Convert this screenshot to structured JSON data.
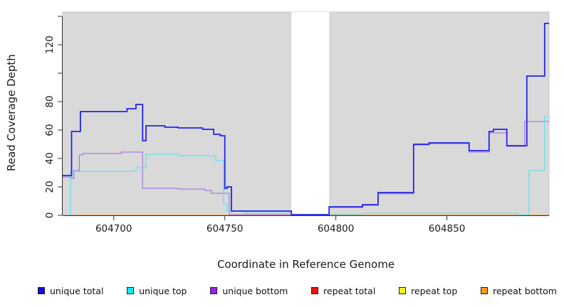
{
  "chart": {
    "y_axis_title": "Read Coverage Depth",
    "x_axis_title": "Coordinate in Reference Genome",
    "x_ticks": [
      {
        "pos": 604700,
        "label": "604700"
      },
      {
        "pos": 604750,
        "label": "604750"
      },
      {
        "pos": 604800,
        "label": "604800"
      },
      {
        "pos": 604850,
        "label": "604850"
      }
    ],
    "y_ticks": [
      {
        "pos": 0,
        "label": "0"
      },
      {
        "pos": 20,
        "label": "20"
      },
      {
        "pos": 40,
        "label": "40"
      },
      {
        "pos": 60,
        "label": "60"
      },
      {
        "pos": 80,
        "label": "80"
      },
      {
        "pos": 100,
        "label": ""
      },
      {
        "pos": 120,
        "label": "120"
      },
      {
        "pos": 140,
        "label": ""
      }
    ]
  },
  "legend": {
    "items": [
      {
        "label": "unique total",
        "color": "#0f0fe0"
      },
      {
        "label": "unique top",
        "color": "#0ff0f5"
      },
      {
        "label": "unique bottom",
        "color": "#9c1fe8"
      },
      {
        "label": "repeat total",
        "color": "#ee0f0f"
      },
      {
        "label": "repeat top",
        "color": "#fdf514"
      },
      {
        "label": "repeat bottom",
        "color": "#f79a1e"
      }
    ]
  },
  "chart_data": {
    "type": "line",
    "subtype": "step-coverage",
    "title": "",
    "xlabel": "Coordinate in Reference Genome",
    "ylabel": "Read Coverage Depth",
    "xlim": [
      604677,
      604896
    ],
    "ylim": [
      0,
      143
    ],
    "grid": false,
    "panel_background": "#d9d9d9",
    "gap_region": [
      604780,
      604797
    ],
    "legend_position": "bottom",
    "series": [
      {
        "name": "repeat top",
        "color": "#f5ef3d",
        "width": 1.2,
        "steps": [
          [
            604677,
            0
          ]
        ]
      },
      {
        "name": "repeat total",
        "color": "#d97b9a",
        "width": 1.2,
        "steps": [
          [
            604677,
            0
          ],
          [
            604753,
            0.35
          ],
          [
            604780,
            0
          ]
        ]
      },
      {
        "name": "repeat bottom",
        "color": "#ff9d2e",
        "width": 1.6,
        "steps": [
          [
            604677,
            0
          ]
        ]
      },
      {
        "name": "unique bottom",
        "color": "#a97ddd",
        "width": 1.3,
        "steps": [
          [
            604677,
            27
          ],
          [
            604681,
            26
          ],
          [
            604682,
            31.5
          ],
          [
            604684.5,
            42.5
          ],
          [
            604686,
            43.5
          ],
          [
            604703.5,
            44.5
          ],
          [
            604713,
            19
          ],
          [
            604729,
            18.5
          ],
          [
            604741,
            17.5
          ],
          [
            604744,
            15.5
          ],
          [
            604752,
            0.5
          ],
          [
            604780,
            0.3
          ],
          [
            604797,
            5.5
          ],
          [
            604812,
            7
          ],
          [
            604819,
            15.2
          ],
          [
            604835,
            49.5
          ],
          [
            604842,
            50.5
          ],
          [
            604860,
            44.5
          ],
          [
            604869,
            58
          ],
          [
            604877,
            48.5
          ],
          [
            604885,
            66
          ]
        ]
      },
      {
        "name": "unique top",
        "color": "#63e3ee",
        "width": 1.3,
        "steps": [
          [
            604677,
            0
          ],
          [
            604680.5,
            31
          ],
          [
            604710,
            33.5
          ],
          [
            604714.5,
            43
          ],
          [
            604729,
            41.8
          ],
          [
            604746,
            38.5
          ],
          [
            604749.5,
            8
          ],
          [
            604751,
            3.2
          ],
          [
            604759,
            1.5
          ],
          [
            604780,
            0.3
          ],
          [
            604797,
            0.8
          ],
          [
            604812,
            1.4
          ],
          [
            604882,
            0.5
          ],
          [
            604887,
            31.5
          ],
          [
            604894,
            69.5
          ]
        ]
      },
      {
        "name": "unique total",
        "color": "#2323e6",
        "width": 1.8,
        "steps": [
          [
            604677,
            28
          ],
          [
            604681,
            59
          ],
          [
            604685,
            73
          ],
          [
            604706,
            75
          ],
          [
            604710,
            78
          ],
          [
            604713,
            52.5
          ],
          [
            604714.5,
            63
          ],
          [
            604723,
            62
          ],
          [
            604729,
            61.5
          ],
          [
            604740,
            60.5
          ],
          [
            604745,
            57
          ],
          [
            604748,
            56
          ],
          [
            604750,
            19
          ],
          [
            604751,
            20
          ],
          [
            604753,
            3
          ],
          [
            604780,
            0.5
          ],
          [
            604797,
            6
          ],
          [
            604812,
            7.5
          ],
          [
            604819,
            16
          ],
          [
            604835,
            50
          ],
          [
            604842,
            51
          ],
          [
            604860,
            45.5
          ],
          [
            604869,
            59
          ],
          [
            604871,
            60.5
          ],
          [
            604877,
            49
          ],
          [
            604886,
            98
          ],
          [
            604894,
            135
          ]
        ]
      }
    ]
  }
}
